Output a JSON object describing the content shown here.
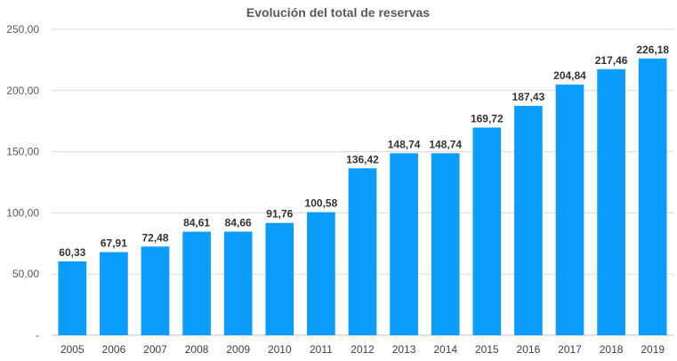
{
  "chart_data": {
    "type": "bar",
    "title": "Evolución del total de reservas",
    "xlabel": "",
    "ylabel": "",
    "categories": [
      "2005",
      "2006",
      "2007",
      "2008",
      "2009",
      "2010",
      "2011",
      "2012",
      "2013",
      "2014",
      "2015",
      "2016",
      "2017",
      "2018",
      "2019"
    ],
    "values": [
      60.33,
      67.91,
      72.48,
      84.61,
      84.66,
      91.76,
      100.58,
      136.42,
      148.74,
      148.74,
      169.72,
      187.43,
      204.84,
      217.46,
      226.18
    ],
    "value_labels": [
      "60,33",
      "67,91",
      "72,48",
      "84,61",
      "84,66",
      "91,76",
      "100,58",
      "136,42",
      "148,74",
      "148,74",
      "169,72",
      "187,43",
      "204,84",
      "217,46",
      "226,18"
    ],
    "ylim": [
      0,
      250
    ],
    "yticks": [
      0,
      50,
      100,
      150,
      200,
      250
    ],
    "ytick_labels": [
      "-",
      "50,00",
      "100,00",
      "150,00",
      "200,00",
      "250,00"
    ],
    "grid": true,
    "legend": "none",
    "bar_color": "#0c9cfc"
  }
}
